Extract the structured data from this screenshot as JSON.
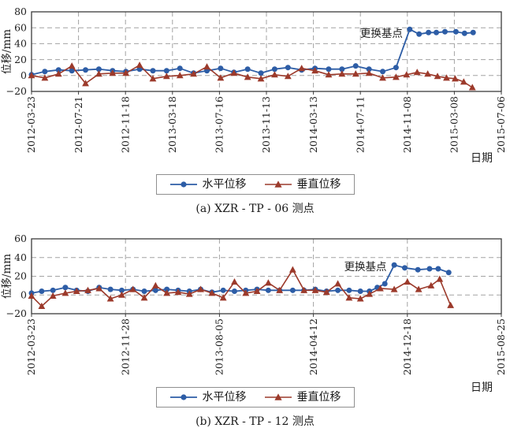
{
  "colors": {
    "horizontal": "#2d5da6",
    "vertical": "#9c3a2b",
    "grid": "#a3a3a3",
    "axis": "#3c3c3c",
    "text": "#1f1f1f"
  },
  "xaxis_title": "日期",
  "yaxis_title": "位移/mm",
  "chart_data": [
    {
      "type": "line",
      "caption": "(a) XZR - TP - 06 测点",
      "title": "",
      "xlabel": "日期",
      "ylabel": "位移/mm",
      "ylim": [
        -20,
        80
      ],
      "ytick_step": 20,
      "grid": true,
      "legend_position": "bottom",
      "x_range_days": [
        0,
        1200
      ],
      "x_tick_days": [
        0,
        120,
        240,
        360,
        480,
        600,
        720,
        840,
        960,
        1080,
        1200
      ],
      "x_tick_labels": [
        "2012-03-23",
        "2012-07-21",
        "2012-11-18",
        "2013-03-18",
        "2013-07-16",
        "2013-11-13",
        "2014-03-13",
        "2014-07-11",
        "2014-11-08",
        "2015-03-08",
        "2015-07-06"
      ],
      "annotation": {
        "text": "更换基点",
        "day": 948,
        "value": 53
      },
      "series": [
        {
          "name": "水平位移",
          "marker": "circle",
          "color_key": "horizontal",
          "x_days": [
            0,
            34,
            69,
            103,
            138,
            172,
            207,
            241,
            276,
            310,
            345,
            379,
            414,
            448,
            483,
            517,
            552,
            586,
            621,
            655,
            690,
            724,
            759,
            793,
            828,
            862,
            897,
            931,
            966,
            990,
            1014,
            1034,
            1056,
            1084,
            1106,
            1128
          ],
          "values": [
            1,
            5,
            7,
            6,
            7,
            8,
            6,
            5,
            8,
            6,
            6,
            9,
            3,
            6,
            9,
            4,
            8,
            3,
            8,
            10,
            7,
            9,
            8,
            8,
            12,
            8,
            5,
            10,
            58,
            52,
            54,
            54,
            55,
            55,
            53,
            54
          ]
        },
        {
          "name": "垂直位移",
          "marker": "triangle",
          "color_key": "vertical",
          "x_days": [
            0,
            34,
            69,
            103,
            138,
            172,
            207,
            241,
            276,
            310,
            345,
            379,
            414,
            448,
            483,
            517,
            552,
            586,
            621,
            655,
            690,
            724,
            759,
            793,
            828,
            862,
            897,
            931,
            958,
            985,
            1012,
            1037,
            1060,
            1082,
            1104,
            1126
          ],
          "values": [
            0,
            -3,
            2,
            12,
            -10,
            2,
            3,
            3,
            13,
            -4,
            -1,
            0,
            2,
            11,
            -3,
            3,
            -2,
            -4,
            1,
            -1,
            9,
            6,
            1,
            2,
            2,
            3,
            -3,
            -2,
            1,
            4,
            2,
            -1,
            -3,
            -4,
            -8,
            -15
          ]
        }
      ]
    },
    {
      "type": "line",
      "caption": "(b) XZR - TP - 12 测点",
      "title": "",
      "xlabel": "日期",
      "ylabel": "位移/mm",
      "ylim": [
        -20,
        60
      ],
      "ytick_step": 20,
      "grid": true,
      "legend_position": "bottom",
      "x_range_days": [
        0,
        1250
      ],
      "x_tick_days": [
        0,
        250,
        500,
        750,
        1000,
        1250
      ],
      "x_tick_labels": [
        "2012-03-23",
        "2012-11-28",
        "2013-08-05",
        "2014-04-12",
        "2014-12-18",
        "2015-08-25"
      ],
      "annotation": {
        "text": "更换基点",
        "day": 945,
        "value": 30
      },
      "series": [
        {
          "name": "水平位移",
          "marker": "circle",
          "color_key": "horizontal",
          "x_days": [
            0,
            27,
            57,
            90,
            120,
            150,
            180,
            210,
            240,
            270,
            300,
            330,
            360,
            390,
            420,
            450,
            480,
            510,
            540,
            570,
            600,
            630,
            660,
            695,
            725,
            755,
            785,
            815,
            845,
            875,
            899,
            920,
            940,
            965,
            993,
            1028,
            1059,
            1082,
            1110
          ],
          "values": [
            2,
            4,
            5,
            8,
            5,
            4,
            8,
            6,
            5,
            6,
            4,
            5,
            6,
            5,
            4,
            6,
            3,
            5,
            4,
            5,
            6,
            5,
            5,
            5,
            5,
            6,
            4,
            5,
            5,
            4,
            4,
            8,
            12,
            32,
            29,
            27,
            28,
            28,
            24
          ]
        },
        {
          "name": "垂直位移",
          "marker": "triangle",
          "color_key": "vertical",
          "x_days": [
            0,
            27,
            57,
            90,
            120,
            150,
            180,
            210,
            240,
            270,
            300,
            330,
            360,
            390,
            420,
            450,
            480,
            510,
            540,
            570,
            600,
            630,
            660,
            695,
            725,
            755,
            785,
            815,
            845,
            875,
            899,
            928,
            965,
            1000,
            1030,
            1063,
            1086,
            1115
          ],
          "values": [
            -1,
            -12,
            -1,
            2,
            4,
            5,
            7,
            -4,
            0,
            6,
            -3,
            10,
            2,
            3,
            1,
            6,
            2,
            -3,
            14,
            2,
            4,
            13,
            5,
            27,
            5,
            5,
            3,
            12,
            -3,
            -4,
            1,
            7,
            6,
            14,
            6,
            10,
            17,
            -11
          ]
        }
      ]
    }
  ]
}
